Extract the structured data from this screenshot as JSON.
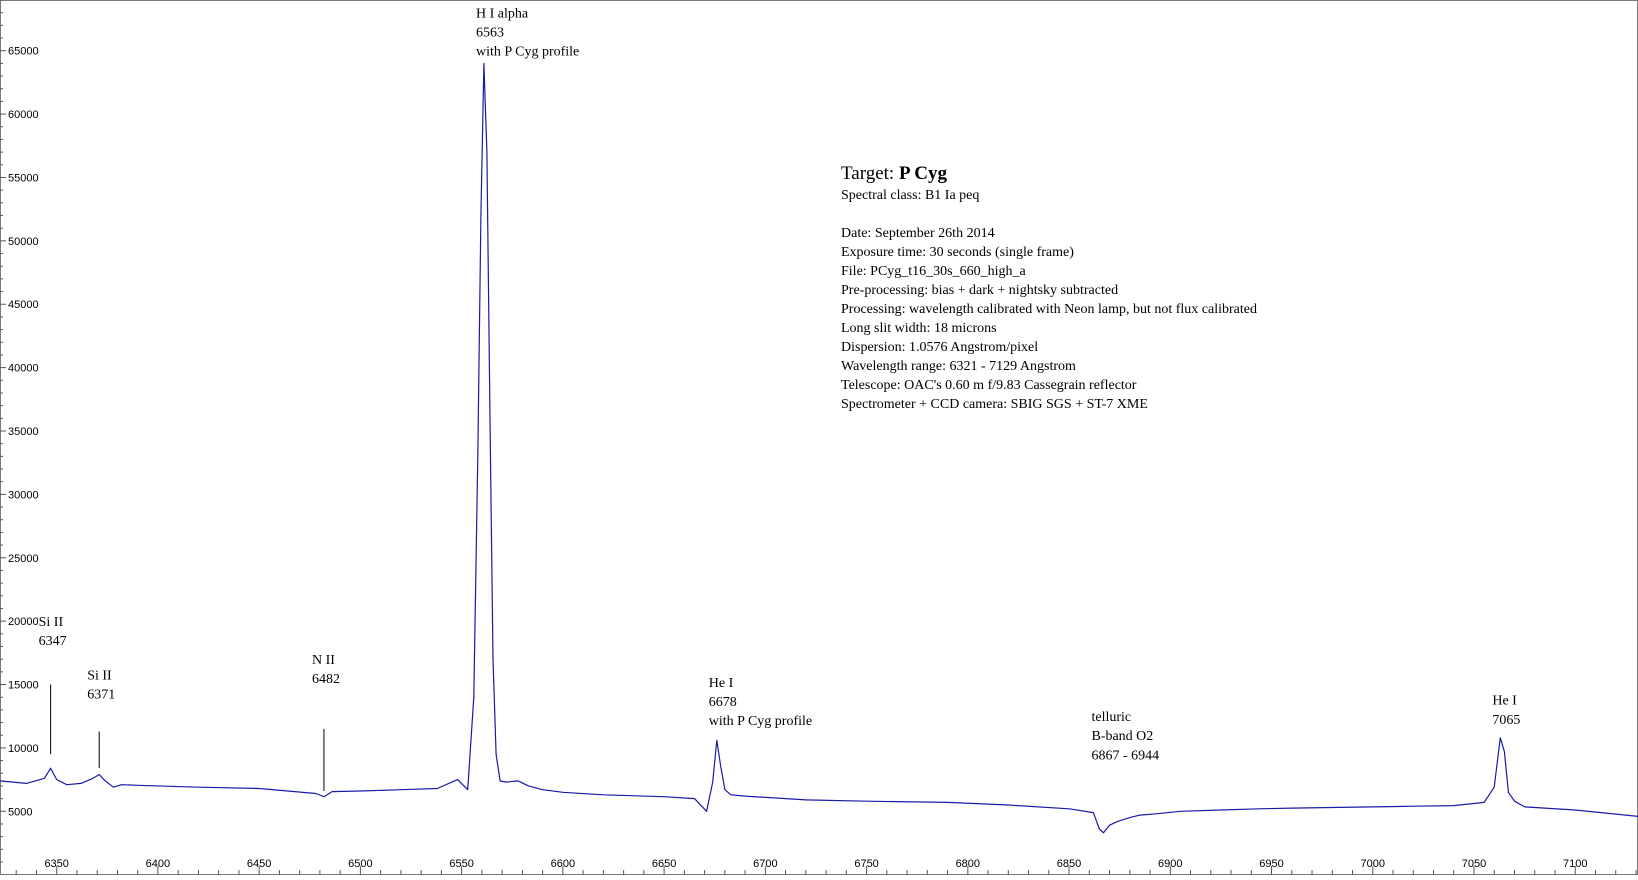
{
  "chart_data": {
    "type": "line",
    "title": "",
    "xlabel": "",
    "ylabel": "",
    "xlim": [
      6322,
      7131
    ],
    "ylim": [
      1000,
      69000
    ],
    "xticks": [
      6350,
      6400,
      6450,
      6500,
      6550,
      6600,
      6650,
      6700,
      6750,
      6800,
      6850,
      6900,
      6950,
      7000,
      7050,
      7100
    ],
    "yticks": [
      5000,
      10000,
      15000,
      20000,
      25000,
      30000,
      35000,
      40000,
      45000,
      50000,
      55000,
      60000,
      65000
    ],
    "grid": false,
    "line_color": "#1a1aa6",
    "series": [
      {
        "x": [
          6322,
          6335,
          6344,
          6347,
          6350,
          6355,
          6362,
          6368,
          6371,
          6374,
          6378,
          6382,
          6390,
          6420,
          6450,
          6478,
          6482,
          6486,
          6500,
          6520,
          6538,
          6548,
          6553,
          6556,
          6558,
          6559.5,
          6561,
          6562.5,
          6564,
          6565.5,
          6567,
          6569,
          6572,
          6578,
          6583,
          6590,
          6600,
          6620,
          6650,
          6665,
          6671,
          6674,
          6676,
          6678,
          6680,
          6683,
          6690,
          6720,
          6750,
          6790,
          6820,
          6850,
          6862,
          6865,
          6867,
          6870,
          6874,
          6880,
          6885,
          6893,
          6905,
          6925,
          6944,
          6960,
          6980,
          7000,
          7020,
          7040,
          7055,
          7060,
          7063,
          7065,
          7067,
          7070,
          7075,
          7100,
          7131
        ],
        "y": [
          7400,
          7200,
          7600,
          8400,
          7500,
          7100,
          7200,
          7600,
          7900,
          7400,
          6900,
          7100,
          7050,
          6900,
          6800,
          6400,
          6150,
          6550,
          6600,
          6700,
          6800,
          7500,
          6700,
          14000,
          33000,
          52000,
          64000,
          57000,
          36000,
          17000,
          9500,
          7400,
          7300,
          7400,
          7000,
          6700,
          6500,
          6300,
          6150,
          6000,
          5000,
          7300,
          10600,
          8500,
          6700,
          6300,
          6200,
          5900,
          5800,
          5700,
          5500,
          5200,
          4900,
          3600,
          3300,
          3900,
          4200,
          4500,
          4700,
          4800,
          5000,
          5100,
          5200,
          5250,
          5300,
          5350,
          5400,
          5450,
          5700,
          6900,
          10800,
          9700,
          6500,
          5800,
          5350,
          5100,
          4600
        ]
      }
    ],
    "annotations": [
      {
        "lines": [
          "Si II",
          "6347"
        ],
        "x": 6347,
        "tick_y": [
          9500,
          15000
        ],
        "label_y": [
          20000,
          18500
        ]
      },
      {
        "lines": [
          "Si II",
          "6371"
        ],
        "x": 6371,
        "tick_y": [
          8400,
          11300
        ],
        "label_y": [
          15800,
          14300
        ]
      },
      {
        "lines": [
          "N II",
          "6482"
        ],
        "x": 6482,
        "tick_y": [
          6600,
          11500
        ],
        "label_y": [
          17000,
          15500
        ]
      },
      {
        "lines": [
          "H I alpha",
          "6563",
          "with P Cyg profile"
        ],
        "x": 6563,
        "label_y": [
          68000,
          66500,
          65000
        ]
      },
      {
        "lines": [
          "He I",
          "6678",
          "with P Cyg profile"
        ],
        "x": 6678,
        "label_y": [
          15200,
          13700,
          12200
        ]
      },
      {
        "lines": [
          "telluric",
          "B-band O2",
          "6867 - 6944"
        ],
        "x": 6867,
        "label_y": [
          12500,
          11000,
          9500
        ]
      },
      {
        "lines": [
          "He I",
          "7065"
        ],
        "x": 7065,
        "label_y": [
          13800,
          12300
        ]
      }
    ]
  },
  "info": {
    "target_prefix": "Target: ",
    "target_name": "P Cyg",
    "spectral_class": "Spectral class: B1 Ia peq",
    "date": "Date: September 26th 2014",
    "exposure": "Exposure time: 30 seconds (single frame)",
    "file": "File: PCyg_t16_30s_660_high_a",
    "preprocessing": "Pre-processing: bias + dark + nightsky subtracted",
    "processing": "Processing: wavelength calibrated with Neon lamp, but not flux calibrated",
    "slit": "Long slit width: 18 microns",
    "dispersion": "Dispersion: 1.0576 Angstrom/pixel",
    "range": "Wavelength range: 6321 - 7129 Angstrom",
    "telescope": "Telescope: OAC's 0.60 m f/9.83 Cassegrain reflector",
    "camera": "Spectrometer + CCD camera: SBIG SGS + ST-7 XME"
  }
}
